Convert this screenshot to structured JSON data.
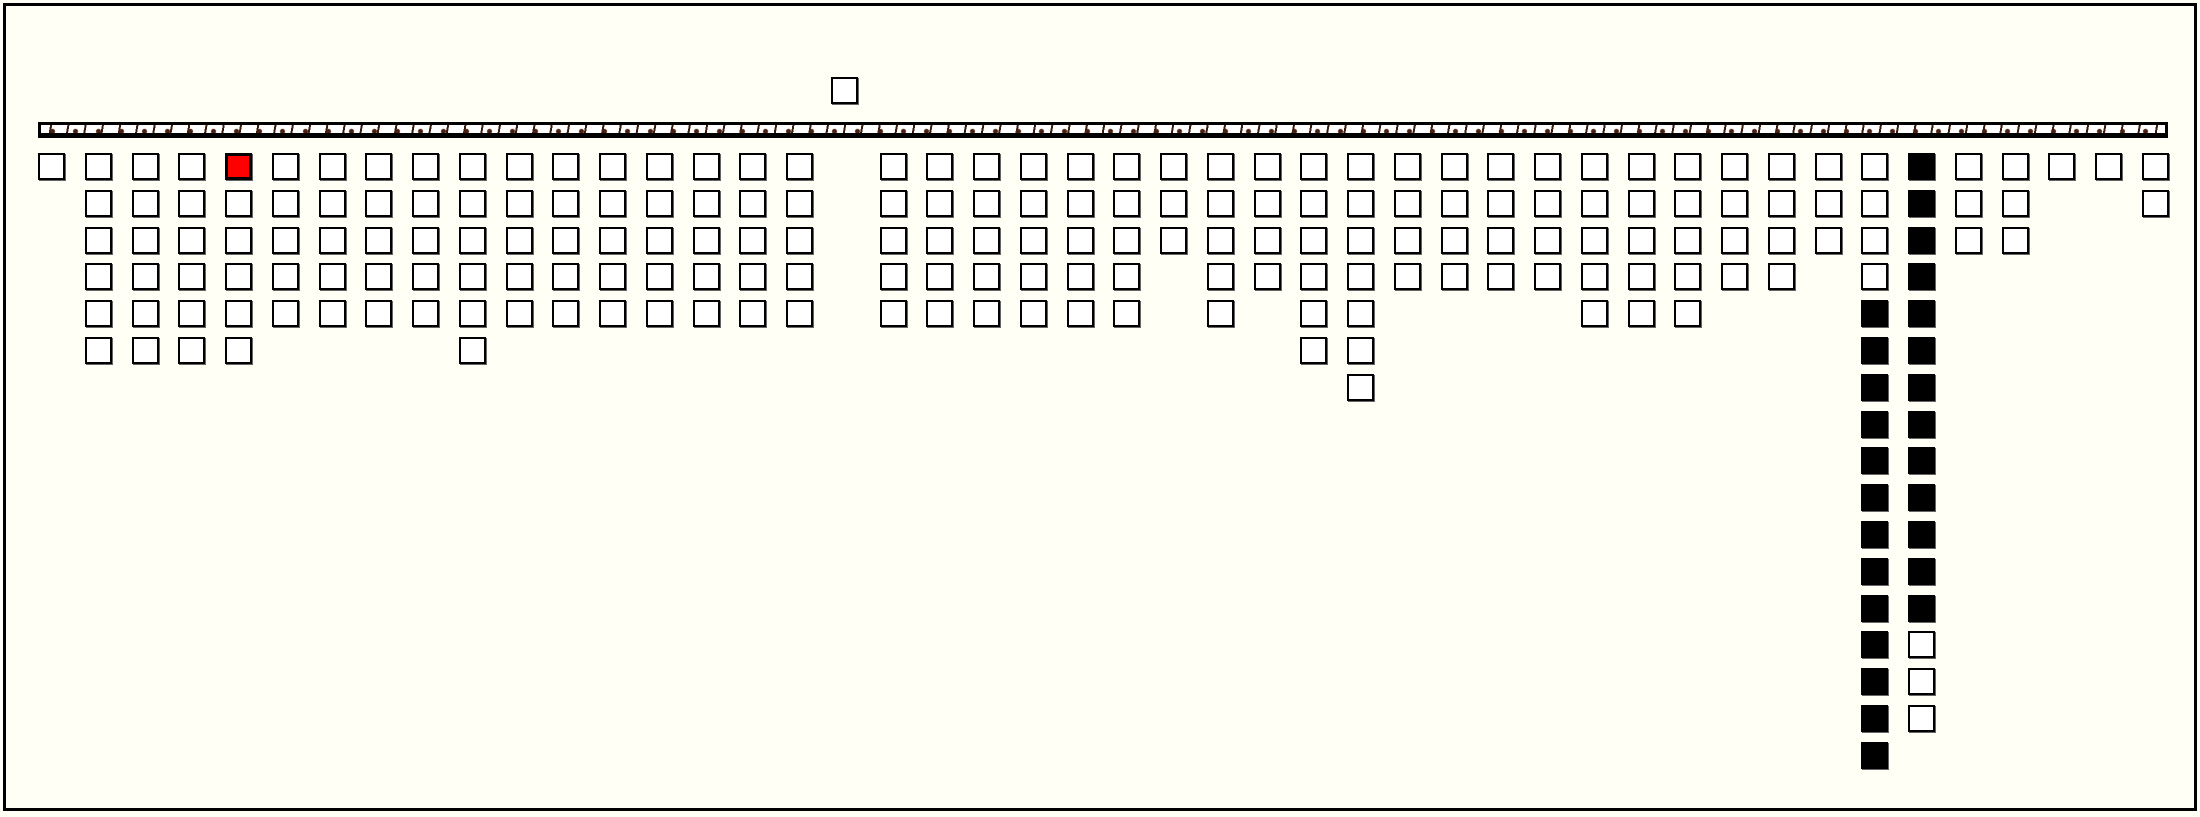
{
  "colors": {
    "background": "#fffff5",
    "empty_cell": "#ffffff",
    "filled_cell": "#000000",
    "selected_cell": "#ff0000",
    "bar_texture": "#4a1f10"
  },
  "held_piece": {
    "state": "w"
  },
  "columns": [
    "w",
    "wwwwww",
    "wwwwww",
    "wwwwww",
    "rwwwww",
    "wwwww",
    "wwwww",
    "wwwww",
    "wwwww",
    "wwwwww",
    "wwwww",
    "wwwww",
    "wwwww",
    "wwwww",
    "wwwww",
    "wwwww",
    "wwwww",
    "",
    "wwwww",
    "wwwww",
    "wwwww",
    "wwwww",
    "wwwww",
    "wwwww",
    "www",
    "wwwww",
    "wwww",
    "wwwwww",
    "wwwwwww",
    "wwww",
    "wwww",
    "wwww",
    "wwww",
    "wwwww",
    "wwwww",
    "wwwww",
    "wwww",
    "wwww",
    "www",
    "wwwwbbbbbbbbbbbbb",
    "bbbbbbbbbbbbbwww",
    "www",
    "www",
    "w",
    "w",
    "ww"
  ]
}
